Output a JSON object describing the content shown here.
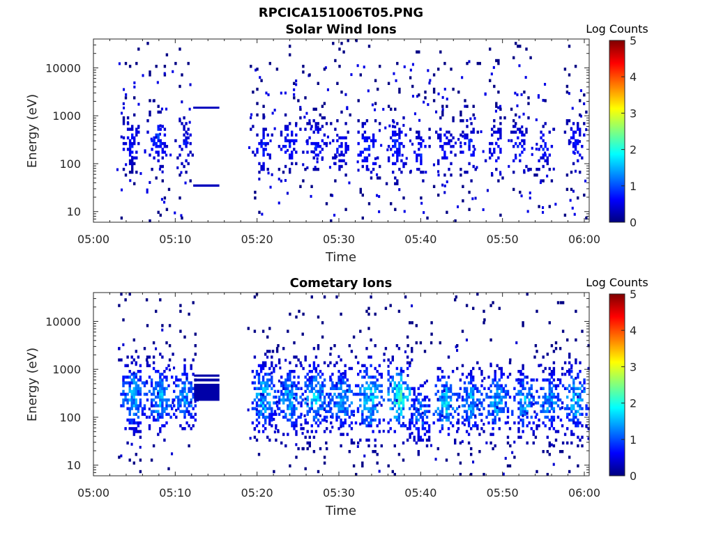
{
  "figure": {
    "title": "RPCICA151006T05.PNG"
  },
  "colormap": "jet",
  "chart_data": [
    {
      "type": "heatmap",
      "title": "Solar Wind Ions",
      "xlabel": "Time",
      "ylabel": "Energy (eV)",
      "x_ticks": [
        "05:00",
        "05:10",
        "05:20",
        "05:30",
        "05:40",
        "05:50",
        "06:00"
      ],
      "xlim_minutes": [
        0,
        60
      ],
      "y_scale": "log",
      "ylim": [
        6,
        40000
      ],
      "y_ticks": [
        "10",
        "100",
        "1000",
        "10000"
      ],
      "colorbar": {
        "label": "Log Counts",
        "range": [
          0,
          5
        ],
        "ticks": [
          "0",
          "1",
          "2",
          "3",
          "4",
          "5"
        ]
      },
      "bursts": [
        {
          "t": 4.5,
          "w": 1.2,
          "e_center": 250,
          "e_spread": 0.45,
          "level": 0.8,
          "density": 0.55
        },
        {
          "t": 7.8,
          "w": 1.3,
          "e_center": 300,
          "e_spread": 0.45,
          "level": 0.9,
          "density": 0.6
        },
        {
          "t": 11.0,
          "w": 1.1,
          "e_center": 250,
          "e_spread": 0.45,
          "level": 0.7,
          "density": 0.5
        },
        {
          "t": 20.5,
          "w": 1.4,
          "e_center": 200,
          "e_spread": 0.45,
          "level": 0.8,
          "density": 0.45
        },
        {
          "t": 23.8,
          "w": 1.5,
          "e_center": 250,
          "e_spread": 0.45,
          "level": 0.8,
          "density": 0.5
        },
        {
          "t": 27.0,
          "w": 1.5,
          "e_center": 250,
          "e_spread": 0.45,
          "level": 0.8,
          "density": 0.5
        },
        {
          "t": 30.2,
          "w": 1.3,
          "e_center": 200,
          "e_spread": 0.45,
          "level": 0.8,
          "density": 0.5
        },
        {
          "t": 33.5,
          "w": 1.5,
          "e_center": 200,
          "e_spread": 0.5,
          "level": 0.9,
          "density": 0.55
        },
        {
          "t": 37.0,
          "w": 1.3,
          "e_center": 200,
          "e_spread": 0.55,
          "level": 0.9,
          "density": 0.55
        },
        {
          "t": 39.8,
          "w": 1.2,
          "e_center": 150,
          "e_spread": 0.45,
          "level": 0.8,
          "density": 0.45
        },
        {
          "t": 42.8,
          "w": 1.3,
          "e_center": 200,
          "e_spread": 0.45,
          "level": 0.8,
          "density": 0.45
        },
        {
          "t": 45.8,
          "w": 1.3,
          "e_center": 200,
          "e_spread": 0.45,
          "level": 0.8,
          "density": 0.45
        },
        {
          "t": 49.0,
          "w": 1.2,
          "e_center": 200,
          "e_spread": 0.45,
          "level": 0.8,
          "density": 0.4
        },
        {
          "t": 52.0,
          "w": 1.3,
          "e_center": 200,
          "e_spread": 0.45,
          "level": 0.8,
          "density": 0.45
        },
        {
          "t": 55.0,
          "w": 1.2,
          "e_center": 200,
          "e_spread": 0.45,
          "level": 0.8,
          "density": 0.4
        },
        {
          "t": 58.8,
          "w": 1.3,
          "e_center": 250,
          "e_spread": 0.45,
          "level": 0.8,
          "density": 0.45
        }
      ],
      "bands": [
        {
          "t_start": 12.2,
          "t_end": 15.4,
          "e_low": 1400,
          "e_high": 1550,
          "level": 0.3
        },
        {
          "t_start": 12.2,
          "t_end": 15.4,
          "e_low": 33,
          "e_high": 37,
          "level": 0.3
        }
      ],
      "gap": [
        15.4,
        18.8
      ],
      "sparse_background": true
    },
    {
      "type": "heatmap",
      "title": "Cometary Ions",
      "xlabel": "Time",
      "ylabel": "Energy (eV)",
      "x_ticks": [
        "05:00",
        "05:10",
        "05:20",
        "05:30",
        "05:40",
        "05:50",
        "06:00"
      ],
      "xlim_minutes": [
        0,
        60
      ],
      "y_scale": "log",
      "ylim": [
        6,
        40000
      ],
      "y_ticks": [
        "10",
        "100",
        "1000",
        "10000"
      ],
      "colorbar": {
        "label": "Log Counts",
        "range": [
          0,
          5
        ],
        "ticks": [
          "0",
          "1",
          "2",
          "3",
          "4",
          "5"
        ]
      },
      "bursts": [
        {
          "t": 4.8,
          "w": 1.8,
          "e_center": 250,
          "e_spread": 0.6,
          "level": 1.6,
          "density": 0.9
        },
        {
          "t": 8.0,
          "w": 1.8,
          "e_center": 250,
          "e_spread": 0.6,
          "level": 1.6,
          "density": 0.9
        },
        {
          "t": 11.0,
          "w": 1.8,
          "e_center": 250,
          "e_spread": 0.55,
          "level": 1.5,
          "density": 0.85
        },
        {
          "t": 20.8,
          "w": 2.0,
          "e_center": 250,
          "e_spread": 0.6,
          "level": 1.7,
          "density": 0.9
        },
        {
          "t": 23.8,
          "w": 2.0,
          "e_center": 220,
          "e_spread": 0.6,
          "level": 1.6,
          "density": 0.85
        },
        {
          "t": 27.0,
          "w": 2.0,
          "e_center": 250,
          "e_spread": 0.6,
          "level": 1.7,
          "density": 0.9
        },
        {
          "t": 30.3,
          "w": 2.0,
          "e_center": 220,
          "e_spread": 0.6,
          "level": 1.6,
          "density": 0.85
        },
        {
          "t": 33.7,
          "w": 2.0,
          "e_center": 230,
          "e_spread": 0.65,
          "level": 1.8,
          "density": 0.9
        },
        {
          "t": 37.2,
          "w": 1.8,
          "e_center": 250,
          "e_spread": 0.6,
          "level": 2.2,
          "density": 0.9
        },
        {
          "t": 39.8,
          "w": 1.5,
          "e_center": 120,
          "e_spread": 0.5,
          "level": 1.4,
          "density": 0.8
        },
        {
          "t": 43.0,
          "w": 1.8,
          "e_center": 180,
          "e_spread": 0.55,
          "level": 1.8,
          "density": 0.85
        },
        {
          "t": 46.0,
          "w": 1.8,
          "e_center": 200,
          "e_spread": 0.55,
          "level": 1.6,
          "density": 0.85
        },
        {
          "t": 49.2,
          "w": 1.8,
          "e_center": 200,
          "e_spread": 0.55,
          "level": 1.6,
          "density": 0.85
        },
        {
          "t": 52.6,
          "w": 1.8,
          "e_center": 200,
          "e_spread": 0.55,
          "level": 1.6,
          "density": 0.85
        },
        {
          "t": 55.6,
          "w": 1.8,
          "e_center": 200,
          "e_spread": 0.55,
          "level": 1.5,
          "density": 0.85
        },
        {
          "t": 58.8,
          "w": 1.8,
          "e_center": 220,
          "e_spread": 0.6,
          "level": 1.7,
          "density": 0.85
        }
      ],
      "bands": [
        {
          "t_start": 12.3,
          "t_end": 15.4,
          "e_low": 220,
          "e_high": 500,
          "level": 0.2
        },
        {
          "t_start": 12.3,
          "t_end": 15.4,
          "e_low": 560,
          "e_high": 640,
          "level": 0.2
        },
        {
          "t_start": 12.3,
          "t_end": 15.4,
          "e_low": 700,
          "e_high": 780,
          "level": 0.2
        }
      ],
      "gap": [
        15.4,
        18.8
      ],
      "sparse_background": false
    }
  ]
}
